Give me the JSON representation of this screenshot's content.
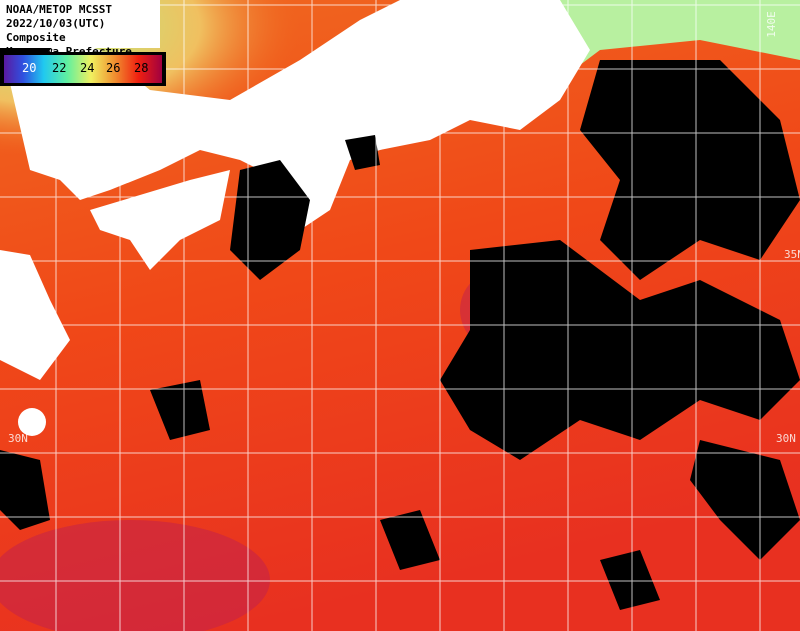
{
  "header": {
    "lines": [
      "NOAA/METOP MCSST",
      "2022/10/03(UTC) Composite",
      "Kanagawa Prefecture"
    ]
  },
  "colorbar": {
    "labels": [
      "20",
      "22",
      "24",
      "26",
      "28"
    ]
  },
  "grid_labels": {
    "lat_left": "30N",
    "lat_right": "30N",
    "lat_right_upper": "35N",
    "lon_top": "140E"
  }
}
